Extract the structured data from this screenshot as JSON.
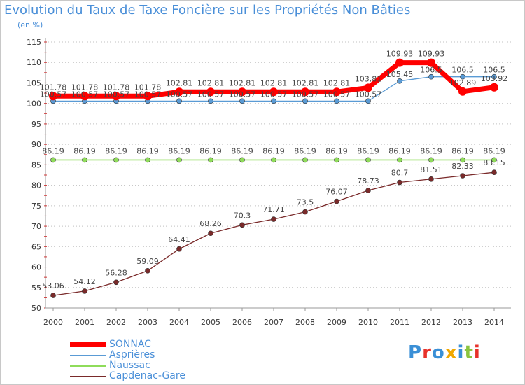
{
  "header": {
    "title": "Evolution du Taux de Taxe Foncière sur les Propriétés Non Bâties",
    "unit": "(en %)"
  },
  "logo": {
    "text": "Proxiti"
  },
  "colors": {
    "SONNAC": "#ff0000",
    "Asprières": "#5a9bd5",
    "Naussac": "#8fdc5a",
    "Capdenac-Gare": "#7a2a2a",
    "title": "#4a8fd8"
  },
  "chart_data": {
    "type": "line",
    "x": [
      "2000",
      "2001",
      "2002",
      "2003",
      "2004",
      "2005",
      "2006",
      "2007",
      "2008",
      "2009",
      "2010",
      "2011",
      "2012",
      "2013",
      "2014"
    ],
    "ylim": [
      50,
      115
    ],
    "yticks": [
      50,
      55,
      60,
      65,
      70,
      75,
      80,
      85,
      90,
      95,
      100,
      105,
      110,
      115
    ],
    "grid": "horizontal dotted",
    "legend": "bottom-left",
    "series": [
      {
        "name": "SONNAC",
        "values": [
          101.78,
          101.78,
          101.78,
          101.78,
          102.81,
          102.81,
          102.81,
          102.81,
          102.81,
          102.81,
          103.81,
          109.93,
          109.93,
          102.89,
          103.92
        ],
        "labels": [
          "101.78",
          "101.78",
          "101.78",
          "101.78",
          "102.81",
          "102.81",
          "102.81",
          "102.81",
          "102.81",
          "102.81",
          "103.81",
          "109.93",
          "109.93",
          "102.89",
          "103.92"
        ]
      },
      {
        "name": "Asprières",
        "values": [
          100.57,
          100.57,
          100.57,
          100.57,
          100.57,
          100.57,
          100.57,
          100.57,
          100.57,
          100.57,
          100.57,
          105.45,
          106.5,
          106.5,
          106.5
        ],
        "labels": [
          "100.57",
          "100.57",
          "100.57",
          "100.57",
          "100.57",
          "100.57",
          "100.57",
          "100.57",
          "100.57",
          "100.57",
          "100.57",
          "105.45",
          "106.5",
          "106.5",
          "106.5"
        ]
      },
      {
        "name": "Naussac",
        "values": [
          86.19,
          86.19,
          86.19,
          86.19,
          86.19,
          86.19,
          86.19,
          86.19,
          86.19,
          86.19,
          86.19,
          86.19,
          86.19,
          86.19,
          86.19
        ],
        "labels": [
          "86.19",
          "86.19",
          "86.19",
          "86.19",
          "86.19",
          "86.19",
          "86.19",
          "86.19",
          "86.19",
          "86.19",
          "86.19",
          "86.19",
          "86.19",
          "86.19",
          "86.19"
        ]
      },
      {
        "name": "Capdenac-Gare",
        "values": [
          53.06,
          54.12,
          56.28,
          59.09,
          64.41,
          68.26,
          70.3,
          71.71,
          73.5,
          76.07,
          78.73,
          80.7,
          81.51,
          82.33,
          83.15
        ],
        "labels": [
          "53.06",
          "54.12",
          "56.28",
          "59.09",
          "64.41",
          "68.26",
          "70.3",
          "71.71",
          "73.5",
          "76.07",
          "78.73",
          "80.7",
          "81.51",
          "82.33",
          "83.15"
        ]
      }
    ]
  }
}
